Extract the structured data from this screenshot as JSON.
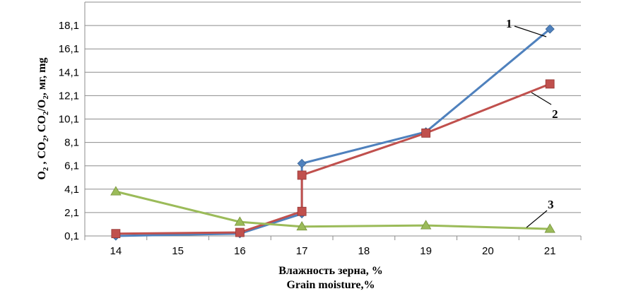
{
  "chart_data": {
    "type": "line",
    "x_categories": [
      "14",
      "15",
      "16",
      "17",
      "18",
      "19",
      "20",
      "21"
    ],
    "xlabel": [
      "Влажность зерна, %",
      "Grain moisture,%"
    ],
    "ylabel_parts": [
      {
        "t": "O"
      },
      {
        "t": "2",
        "sub": true
      },
      {
        "t": " , CO"
      },
      {
        "t": "2",
        "sub": true
      },
      {
        "t": ", CO"
      },
      {
        "t": "2",
        "sub": true
      },
      {
        "t": "/O"
      },
      {
        "t": "2",
        "sub": true
      },
      {
        "t": ", мг, mg"
      }
    ],
    "yticks": [
      "0,1",
      "2,1",
      "4,1",
      "6,1",
      "8,1",
      "10,1",
      "12,1",
      "14,1",
      "16,1",
      "18,1"
    ],
    "ylim": [
      0.1,
      20.1
    ],
    "grid": true,
    "series": [
      {
        "name": "1",
        "color": "#4f81bd",
        "marker": "diamond",
        "points": [
          [
            14,
            0.1
          ],
          [
            16,
            0.3
          ],
          [
            17,
            2.0
          ],
          [
            17,
            6.3
          ],
          [
            19,
            9.0
          ],
          [
            21,
            17.8
          ]
        ]
      },
      {
        "name": "2",
        "color": "#c0504d",
        "marker": "square",
        "points": [
          [
            14,
            0.3
          ],
          [
            16,
            0.4
          ],
          [
            17,
            2.2
          ],
          [
            17,
            5.3
          ],
          [
            19,
            8.9
          ],
          [
            21,
            13.1
          ]
        ]
      },
      {
        "name": "3",
        "color": "#9bbb59",
        "marker": "triangle",
        "points": [
          [
            14,
            3.9
          ],
          [
            16,
            1.3
          ],
          [
            17,
            0.9
          ],
          [
            19,
            1.0
          ],
          [
            21,
            0.7
          ]
        ]
      }
    ]
  }
}
